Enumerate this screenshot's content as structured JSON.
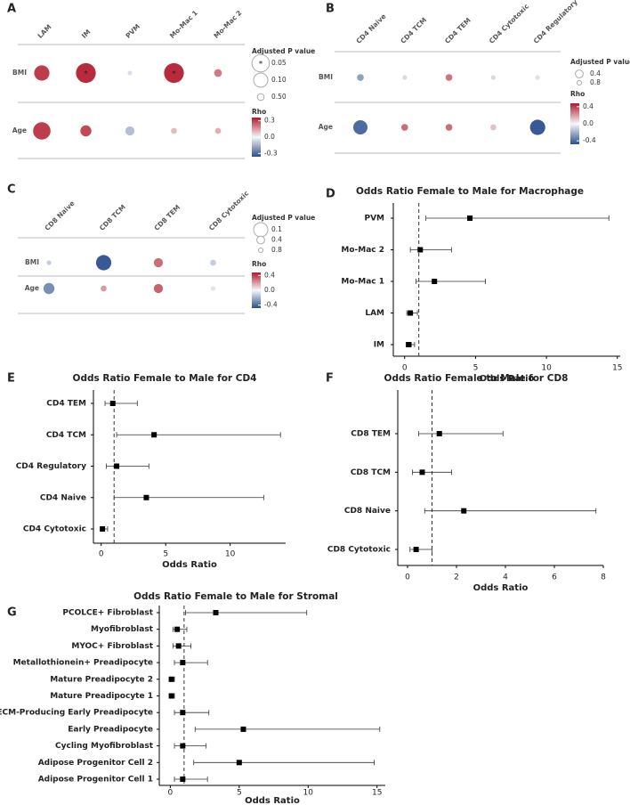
{
  "chart_data": [
    {
      "type": "dotplot",
      "panel": "A",
      "columns": [
        "LAM",
        "IM",
        "PVM",
        "Mo-Mac 1",
        "Mo-Mac 2"
      ],
      "rows": [
        "BMI",
        "Age"
      ],
      "rho": [
        [
          0.3,
          0.33,
          -0.05,
          0.33,
          0.2
        ],
        [
          0.3,
          0.28,
          -0.12,
          0.1,
          0.12
        ]
      ],
      "p": [
        [
          0.08,
          0.03,
          0.8,
          0.03,
          0.4
        ],
        [
          0.05,
          0.2,
          0.3,
          0.6,
          0.6
        ]
      ],
      "stars": [
        [
          null,
          "*",
          null,
          "*",
          null
        ],
        [
          null,
          null,
          null,
          null,
          null
        ]
      ],
      "size_title": "Adjusted P value",
      "sizes": [
        0.05,
        {
          "value": 0.1,
          "label": "0.10"
        },
        {
          "value": 0.5,
          "label": "0.50"
        }
      ],
      "size_stars": [
        "*",
        null,
        null
      ],
      "color_title": "Rho",
      "colorlim": [
        -0.36,
        0.36
      ],
      "colorticks": [
        0.3,
        {
          "value": 0,
          "label": "0.0"
        },
        -0.3
      ],
      "colors": [
        "#2b4f8e",
        "#f7f7f7",
        "#b2182b"
      ]
    },
    {
      "type": "dotplot",
      "panel": "B",
      "columns": [
        "CD4 Naive",
        "CD4 TCM",
        "CD4 TEM",
        "CD4 Cytotoxic",
        "CD4 Regulatory"
      ],
      "rows": [
        "BMI",
        "Age"
      ],
      "rho": [
        [
          -0.25,
          -0.08,
          0.28,
          -0.08,
          -0.06
        ],
        [
          -0.4,
          0.3,
          0.3,
          0.12,
          -0.45
        ]
      ],
      "p": [
        [
          0.5,
          0.8,
          0.5,
          0.8,
          0.8
        ],
        [
          0.1,
          0.5,
          0.5,
          0.6,
          0.08
        ]
      ],
      "size_title": "Adjusted P value",
      "sizes": [
        0.4,
        0.8
      ],
      "color_title": "Rho",
      "colorlim": [
        -0.48,
        0.48
      ],
      "colorticks": [
        0.4,
        {
          "value": 0,
          "label": "0.0"
        },
        -0.4
      ],
      "colors": [
        "#2b4f8e",
        "#f7f7f7",
        "#b2182b"
      ]
    },
    {
      "type": "dotplot",
      "panel": "C",
      "columns": [
        "CD8 Naive",
        "CD8 TCM",
        "CD8 TEM",
        "CD8 Cytotoxic"
      ],
      "rows": [
        "BMI",
        "Age"
      ],
      "rho": [
        [
          -0.12,
          -0.45,
          0.3,
          -0.12
        ],
        [
          -0.3,
          0.2,
          0.32,
          -0.05
        ]
      ],
      "p": [
        [
          0.8,
          0.08,
          0.3,
          0.6
        ],
        [
          0.2,
          0.6,
          0.3,
          0.8
        ]
      ],
      "size_title": "Adjusted P value",
      "sizes": [
        0.1,
        0.4,
        0.8
      ],
      "color_title": "Rho",
      "colorlim": [
        -0.48,
        0.48
      ],
      "colorticks": [
        0.4,
        {
          "value": 0,
          "label": "0.0"
        },
        -0.4
      ],
      "colors": [
        "#2b4f8e",
        "#f7f7f7",
        "#b2182b"
      ]
    },
    {
      "type": "forest",
      "panel": "D",
      "title": "Odds Ratio Female to Male for Macrophage",
      "categories": [
        "PVM",
        "Mo-Mac 2",
        "Mo-Mac 1",
        "LAM",
        "IM"
      ],
      "values": [
        4.6,
        1.1,
        2.1,
        0.4,
        0.3
      ],
      "lower": [
        1.5,
        0.4,
        0.8,
        0.15,
        0.1
      ],
      "upper": [
        14.4,
        3.3,
        5.7,
        0.9,
        0.7
      ],
      "xlabel": "Odds Ratio",
      "xlim": [
        -0.8,
        15.2
      ],
      "xticks": [
        0,
        5,
        10,
        15
      ],
      "refline": 1
    },
    {
      "type": "forest",
      "panel": "E",
      "title": "Odds Ratio Female to Male for CD4",
      "categories": [
        "CD4 TEM",
        "CD4 TCM",
        "CD4 Regulatory",
        "CD4 Naive",
        "CD4 Cytotoxic"
      ],
      "values": [
        0.9,
        4.1,
        1.2,
        3.5,
        0.1
      ],
      "lower": [
        0.3,
        1.2,
        0.4,
        1.0,
        0.03
      ],
      "upper": [
        2.8,
        13.9,
        3.7,
        12.6,
        0.5
      ],
      "xlabel": "Odds Ratio",
      "xlim": [
        -0.6,
        14.3
      ],
      "xticks": [
        0,
        5,
        10
      ],
      "refline": 1
    },
    {
      "type": "forest",
      "panel": "F",
      "title": "Odds Ratio Female to Male for CD8",
      "categories": [
        "CD8 TEM",
        "CD8 TCM",
        "CD8 Naive",
        "CD8 Cytotoxic"
      ],
      "values": [
        1.3,
        0.6,
        2.3,
        0.35
      ],
      "lower": [
        0.45,
        0.2,
        0.7,
        0.1
      ],
      "upper": [
        3.9,
        1.8,
        7.7,
        1.0
      ],
      "xlabel": "Odds Ratio",
      "xlim": [
        -0.4,
        8
      ],
      "xticks": [
        0,
        2,
        4,
        6,
        8
      ],
      "refline": 1
    },
    {
      "type": "forest",
      "panel": "G",
      "title": "Odds Ratio Female to Male for Stromal",
      "categories": [
        "PCOLCE+ Fibroblast",
        "Myofibroblast",
        "MYOC+ Fibroblast",
        "Metallothionein+ Preadipocyte",
        "Mature Preadipocyte 2",
        "Mature Preadipocyte 1",
        "ECM-Producing Early Preadipocyte",
        "Early Preadipocyte",
        "Cycling Myofibroblast",
        "Adipose Progenitor Cell 2",
        "Adipose Progenitor Cell 1"
      ],
      "values": [
        3.3,
        0.5,
        0.6,
        0.9,
        0.08,
        0.08,
        0.9,
        5.3,
        0.9,
        5.0,
        0.9
      ],
      "lower": [
        1.1,
        0.2,
        0.2,
        0.3,
        0.02,
        0.02,
        0.3,
        1.8,
        0.3,
        1.7,
        0.3
      ],
      "upper": [
        9.9,
        1.2,
        1.5,
        2.7,
        0.3,
        0.3,
        2.8,
        15.2,
        2.6,
        14.8,
        2.7
      ],
      "xlabel": "Odds Ratio",
      "xlim": [
        -0.8,
        15.6
      ],
      "xticks": [
        0,
        5,
        10,
        15
      ],
      "refline": 1
    }
  ]
}
